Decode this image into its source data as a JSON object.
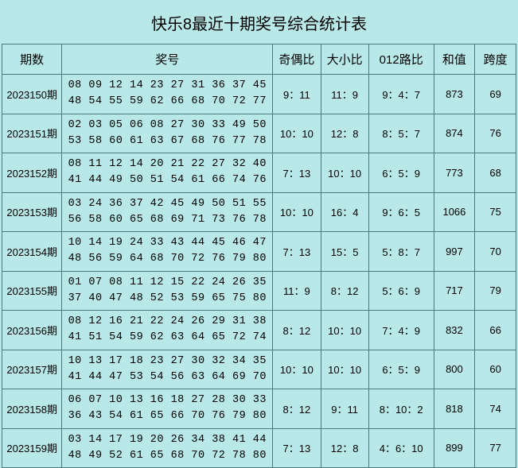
{
  "title": "快乐8最近十期奖号综合统计表",
  "headers": {
    "period": "期数",
    "numbers": "奖号",
    "odd_even": "奇偶比",
    "big_small": "大小比",
    "route_012": "012路比",
    "sum": "和值",
    "span": "跨度"
  },
  "rows": [
    {
      "period": "2023150期",
      "numbers_line1": "08 09 12 14 23 27 31 36 37 45",
      "numbers_line2": "48 54 55 59 62 66 68 70 72 77",
      "odd_even": "9：11",
      "big_small": "11：9",
      "route_012": "9：4：7",
      "sum": "873",
      "span": "69"
    },
    {
      "period": "2023151期",
      "numbers_line1": "02 03 05 06 08 27 30 33 49 50",
      "numbers_line2": "53 58 60 61 63 67 68 76 77 78",
      "odd_even": "10：10",
      "big_small": "12：8",
      "route_012": "8：5：7",
      "sum": "874",
      "span": "76"
    },
    {
      "period": "2023152期",
      "numbers_line1": "08 11 12 14 20 21 22 27 32 40",
      "numbers_line2": "41 44 49 50 51 54 61 66 74 76",
      "odd_even": "7：13",
      "big_small": "10：10",
      "route_012": "6：5：9",
      "sum": "773",
      "span": "68"
    },
    {
      "period": "2023153期",
      "numbers_line1": "03 24 36 37 42 45 49 50 51 55",
      "numbers_line2": "56 58 60 65 68 69 71 73 76 78",
      "odd_even": "10：10",
      "big_small": "16：4",
      "route_012": "9：6：5",
      "sum": "1066",
      "span": "75"
    },
    {
      "period": "2023154期",
      "numbers_line1": "10 14 19 24 33 43 44 45 46 47",
      "numbers_line2": "48 56 59 64 68 70 72 76 79 80",
      "odd_even": "7：13",
      "big_small": "15：5",
      "route_012": "5：8：7",
      "sum": "997",
      "span": "70"
    },
    {
      "period": "2023155期",
      "numbers_line1": "01 07 08 11 12 15 22 24 26 35",
      "numbers_line2": "37 40 47 48 52 53 59 65 75 80",
      "odd_even": "11：9",
      "big_small": "8：12",
      "route_012": "5：6：9",
      "sum": "717",
      "span": "79"
    },
    {
      "period": "2023156期",
      "numbers_line1": "08 12 16 21 22 24 26 29 31 38",
      "numbers_line2": "41 51 54 59 62 63 64 65 72 74",
      "odd_even": "8：12",
      "big_small": "10：10",
      "route_012": "7：4：9",
      "sum": "832",
      "span": "66"
    },
    {
      "period": "2023157期",
      "numbers_line1": "10 13 17 18 23 27 30 32 34 35",
      "numbers_line2": "41 44 47 53 54 56 63 64 69 70",
      "odd_even": "10：10",
      "big_small": "10：10",
      "route_012": "6：5：9",
      "sum": "800",
      "span": "60"
    },
    {
      "period": "2023158期",
      "numbers_line1": "06 07 10 13 16 18 27 28 30 33",
      "numbers_line2": "36 43 54 61 65 66 70 76 79 80",
      "odd_even": "8：12",
      "big_small": "9：11",
      "route_012": "8：10：2",
      "sum": "818",
      "span": "74"
    },
    {
      "period": "2023159期",
      "numbers_line1": "03 14 17 19 20 26 34 38 41 44",
      "numbers_line2": "48 49 52 61 65 68 70 72 78 80",
      "odd_even": "7：13",
      "big_small": "12：8",
      "route_012": "4：6：10",
      "sum": "899",
      "span": "77"
    }
  ]
}
